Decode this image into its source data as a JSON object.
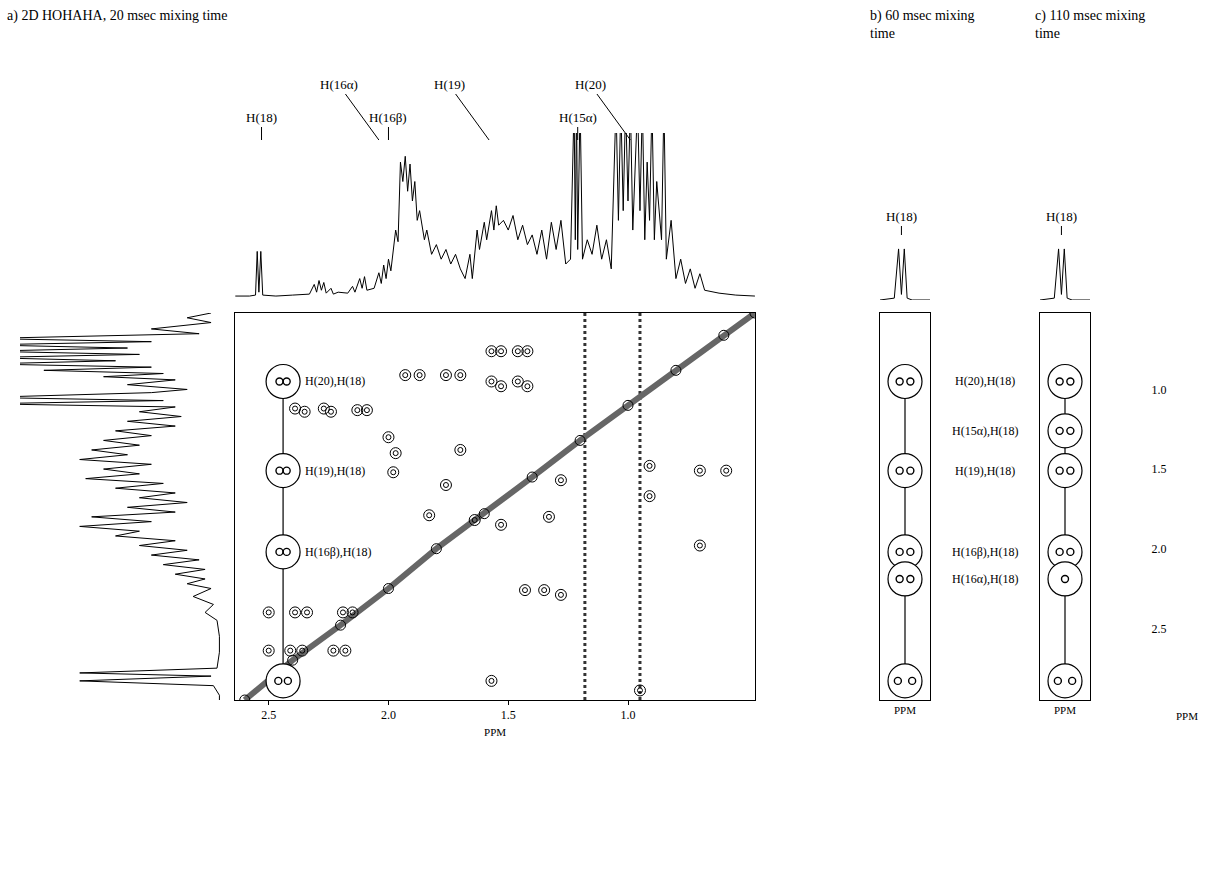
{
  "chart_data": [
    {
      "type": "contour_map",
      "title": "a) 2D HOHAHA, 20 msec mixing time",
      "x_label": "PPM",
      "xlim": [
        2.64,
        0.47
      ],
      "xticks": [
        2.5,
        {
          "value": 2.0,
          "label": "2.0"
        },
        1.5,
        {
          "value": 1.0,
          "label": "1.0"
        }
      ],
      "ylim": [
        2.95,
        0.52
      ],
      "tick_labels": "x",
      "intensity_lim": [
        0,
        170
      ],
      "spectrum_top": {
        "x": [
          2.64,
          2.58,
          2.555,
          2.548,
          2.541,
          2.533,
          2.525,
          2.47,
          2.4,
          2.33,
          2.31,
          2.3,
          2.29,
          2.28,
          2.27,
          2.26,
          2.24,
          2.23,
          2.21,
          2.17,
          2.15,
          2.14,
          2.12,
          2.11,
          2.1,
          2.09,
          2.06,
          2.04,
          2.03,
          2.02,
          2.01,
          2.0,
          1.99,
          1.97,
          1.96,
          1.95,
          1.94,
          1.93,
          1.92,
          1.91,
          1.9,
          1.89,
          1.88,
          1.87,
          1.85,
          1.84,
          1.82,
          1.8,
          1.78,
          1.76,
          1.74,
          1.72,
          1.7,
          1.68,
          1.66,
          1.65,
          1.63,
          1.62,
          1.6,
          1.59,
          1.57,
          1.56,
          1.55,
          1.54,
          1.52,
          1.5,
          1.48,
          1.46,
          1.44,
          1.42,
          1.4,
          1.38,
          1.36,
          1.34,
          1.32,
          1.3,
          1.28,
          1.26,
          1.24,
          1.225,
          1.22,
          1.215,
          1.21,
          1.2,
          1.19,
          1.17,
          1.15,
          1.13,
          1.11,
          1.09,
          1.07,
          1.05,
          1.04,
          1.03,
          1.02,
          1.01,
          1.0,
          0.99,
          0.98,
          0.96,
          0.95,
          0.94,
          0.93,
          0.92,
          0.91,
          0.9,
          0.89,
          0.88,
          0.86,
          0.85,
          0.84,
          0.82,
          0.8,
          0.78,
          0.76,
          0.74,
          0.72,
          0.7,
          0.68,
          0.62,
          0.55,
          0.47
        ],
        "values": [
          2,
          2,
          3,
          48,
          6,
          48,
          3,
          2,
          3,
          4,
          14,
          6,
          18,
          8,
          16,
          5,
          10,
          4,
          6,
          5,
          12,
          6,
          20,
          10,
          22,
          8,
          10,
          26,
          15,
          34,
          20,
          40,
          28,
          70,
          58,
          140,
          120,
          146,
          110,
          138,
          100,
          120,
          80,
          90,
          60,
          70,
          45,
          55,
          40,
          50,
          35,
          45,
          30,
          20,
          45,
          20,
          70,
          50,
          78,
          60,
          90,
          70,
          95,
          75,
          80,
          70,
          85,
          60,
          75,
          55,
          65,
          45,
          70,
          40,
          78,
          50,
          80,
          35,
          40,
          200,
          60,
          200,
          50,
          200,
          40,
          60,
          45,
          75,
          40,
          60,
          30,
          200,
          80,
          200,
          90,
          200,
          100,
          200,
          70,
          200,
          90,
          200,
          60,
          140,
          80,
          200,
          60,
          120,
          60,
          200,
          40,
          80,
          20,
          40,
          15,
          30,
          10,
          25,
          8,
          5,
          3,
          2
        ]
      },
      "spectrum_left": {
        "y": [
          0.52,
          0.55,
          0.58,
          0.62,
          0.65,
          0.68,
          0.7,
          0.72,
          0.74,
          0.76,
          0.78,
          0.8,
          0.82,
          0.84,
          0.86,
          0.88,
          0.9,
          0.92,
          0.94,
          0.97,
          1.0,
          1.02,
          1.05,
          1.07,
          1.09,
          1.11,
          1.14,
          1.17,
          1.2,
          1.23,
          1.26,
          1.29,
          1.32,
          1.35,
          1.38,
          1.41,
          1.44,
          1.47,
          1.5,
          1.53,
          1.56,
          1.59,
          1.62,
          1.65,
          1.68,
          1.71,
          1.74,
          1.77,
          1.8,
          1.83,
          1.86,
          1.89,
          1.92,
          1.95,
          1.98,
          2.01,
          2.04,
          2.07,
          2.1,
          2.13,
          2.16,
          2.19,
          2.22,
          2.25,
          2.3,
          2.35,
          2.4,
          2.45,
          2.55,
          2.65,
          2.75,
          2.78,
          2.8,
          2.83,
          2.86,
          2.92,
          2.95
        ],
        "values": [
          10,
          30,
          10,
          60,
          20,
          200,
          60,
          200,
          80,
          200,
          70,
          200,
          90,
          200,
          60,
          150,
          50,
          100,
          40,
          80,
          30,
          60,
          200,
          50,
          200,
          40,
          70,
          35,
          80,
          40,
          90,
          60,
          100,
          70,
          110,
          80,
          120,
          60,
          100,
          70,
          115,
          50,
          90,
          40,
          70,
          30,
          80,
          40,
          110,
          60,
          120,
          70,
          90,
          40,
          70,
          30,
          60,
          20,
          50,
          15,
          40,
          15,
          30,
          10,
          25,
          8,
          15,
          5,
          3,
          3,
          5,
          120,
          10,
          120,
          8,
          3,
          3
        ]
      },
      "peak_labels": [
        {
          "label": "H(18)",
          "x": 2.53
        },
        {
          "label": "H(16α)",
          "x": 2.04
        },
        {
          "label": "H(16β)",
          "x": 2.0
        },
        {
          "label": "H(19)",
          "x": 1.58
        },
        {
          "label": "H(15α)",
          "x": 1.21
        },
        {
          "label": "H(20)",
          "x": 0.99
        }
      ],
      "cross_peaks": {
        "x": [
          1.57,
          1.53,
          1.46,
          1.42,
          1.57,
          1.53,
          1.46,
          1.42,
          1.76,
          1.7,
          1.93,
          1.87,
          2.39,
          2.35,
          2.27,
          2.24,
          2.13,
          2.09,
          2.0,
          1.97,
          1.98,
          1.76,
          1.7,
          0.91,
          0.7,
          0.59,
          0.7,
          0.91,
          1.64,
          1.53,
          1.83,
          1.43,
          1.35,
          1.28,
          1.57,
          0.95,
          2.5,
          2.39,
          2.34,
          2.19,
          2.15,
          2.5,
          2.41,
          2.36,
          2.23,
          2.18,
          1.28,
          1.33
        ],
        "y": [
          0.76,
          0.76,
          0.76,
          0.76,
          0.95,
          0.98,
          0.95,
          0.98,
          0.91,
          0.91,
          0.91,
          0.91,
          1.12,
          1.14,
          1.12,
          1.14,
          1.13,
          1.13,
          1.3,
          1.4,
          1.52,
          1.6,
          1.38,
          1.67,
          1.51,
          1.51,
          1.98,
          1.48,
          1.82,
          1.85,
          1.79,
          2.26,
          2.26,
          2.29,
          2.83,
          2.89,
          2.4,
          2.4,
          2.4,
          2.4,
          2.4,
          2.64,
          2.64,
          2.64,
          2.64,
          2.64,
          1.57,
          1.8
        ]
      },
      "diagonal": {
        "x": [
          2.6,
          2.4,
          2.2,
          2.0,
          1.8,
          1.6,
          1.4,
          1.2,
          1.0,
          0.8,
          0.6,
          0.47
        ],
        "y": [
          2.95,
          2.7,
          2.48,
          2.25,
          2.0,
          1.78,
          1.55,
          1.32,
          1.1,
          0.88,
          0.66,
          0.52
        ]
      },
      "streaks_x": [
        1.18,
        0.95
      ],
      "circle_x": 2.44,
      "circled": [
        {
          "label": "H(20),H(18)",
          "y": 0.95,
          "peaks": [
            2.455,
            2.425
          ]
        },
        {
          "label": "H(19),H(18)",
          "y": 1.51,
          "peaks": [
            2.455,
            2.425
          ]
        },
        {
          "label": "H(16β),H(18)",
          "y": 2.02,
          "peaks": [
            2.455,
            2.425
          ]
        },
        {
          "y": 2.83,
          "peaks": [
            2.46,
            2.42
          ]
        }
      ]
    },
    {
      "type": "strip",
      "title": "b) 60 msec mixing time",
      "x_label": "PPM",
      "xlim": [
        2.6,
        2.46
      ],
      "ylim": [
        2.95,
        0.52
      ],
      "tick_labels": false,
      "intensity_lim": [
        0,
        70
      ],
      "spectrum": {
        "x": [
          2.6,
          2.56,
          2.548,
          2.54,
          2.532,
          2.524,
          2.51,
          2.46
        ],
        "values": [
          0,
          2,
          55,
          6,
          55,
          2,
          0,
          0
        ]
      },
      "peak_labels": [
        {
          "label": "H(18)",
          "x": 2.54
        }
      ],
      "circle_x": 2.53,
      "circled": [
        {
          "y": 0.95,
          "peaks": [
            2.545,
            2.515
          ]
        },
        {
          "y": 1.51,
          "peaks": [
            2.545,
            2.515
          ]
        },
        {
          "y": 2.02,
          "peaks": [
            2.545,
            2.515
          ]
        },
        {
          "y": 2.19,
          "peaks": [
            2.545,
            2.515
          ]
        },
        {
          "y": 2.83,
          "peaks": [
            2.55,
            2.51
          ]
        }
      ]
    },
    {
      "type": "strip",
      "title": "c) 110 msec mixing time",
      "x_label": "PPM",
      "y_label": "PPM",
      "xlim": [
        2.6,
        2.46
      ],
      "ylim": [
        2.95,
        0.52
      ],
      "yticks": [
        {
          "value": 1.0,
          "label": "1.0"
        },
        1.5,
        {
          "value": 2.0,
          "label": "2.0"
        },
        2.5
      ],
      "tick_labels": "y",
      "intensity_lim": [
        0,
        70
      ],
      "spectrum": {
        "x": [
          2.6,
          2.56,
          2.548,
          2.54,
          2.532,
          2.524,
          2.51,
          2.46
        ],
        "values": [
          0,
          2,
          55,
          6,
          55,
          2,
          0,
          0
        ]
      },
      "peak_labels": [
        {
          "label": "H(18)",
          "x": 2.54
        }
      ],
      "circle_x": 2.53,
      "circled": [
        {
          "label": "H(20),H(18)",
          "y": 0.95,
          "peaks": [
            2.545,
            2.515
          ]
        },
        {
          "label": "H(15α),H(18)",
          "y": 1.26,
          "peaks": [
            2.545,
            2.515
          ]
        },
        {
          "label": "H(19),H(18)",
          "y": 1.51,
          "peaks": [
            2.545,
            2.515
          ]
        },
        {
          "label": "H(16β),H(18)",
          "y": 2.02,
          "peaks": [
            2.545,
            2.515
          ]
        },
        {
          "label": "H(16α),H(18)",
          "y": 2.19,
          "peaks": [
            2.53
          ]
        },
        {
          "y": 2.83,
          "peaks": [
            2.55,
            2.51
          ]
        }
      ]
    }
  ]
}
